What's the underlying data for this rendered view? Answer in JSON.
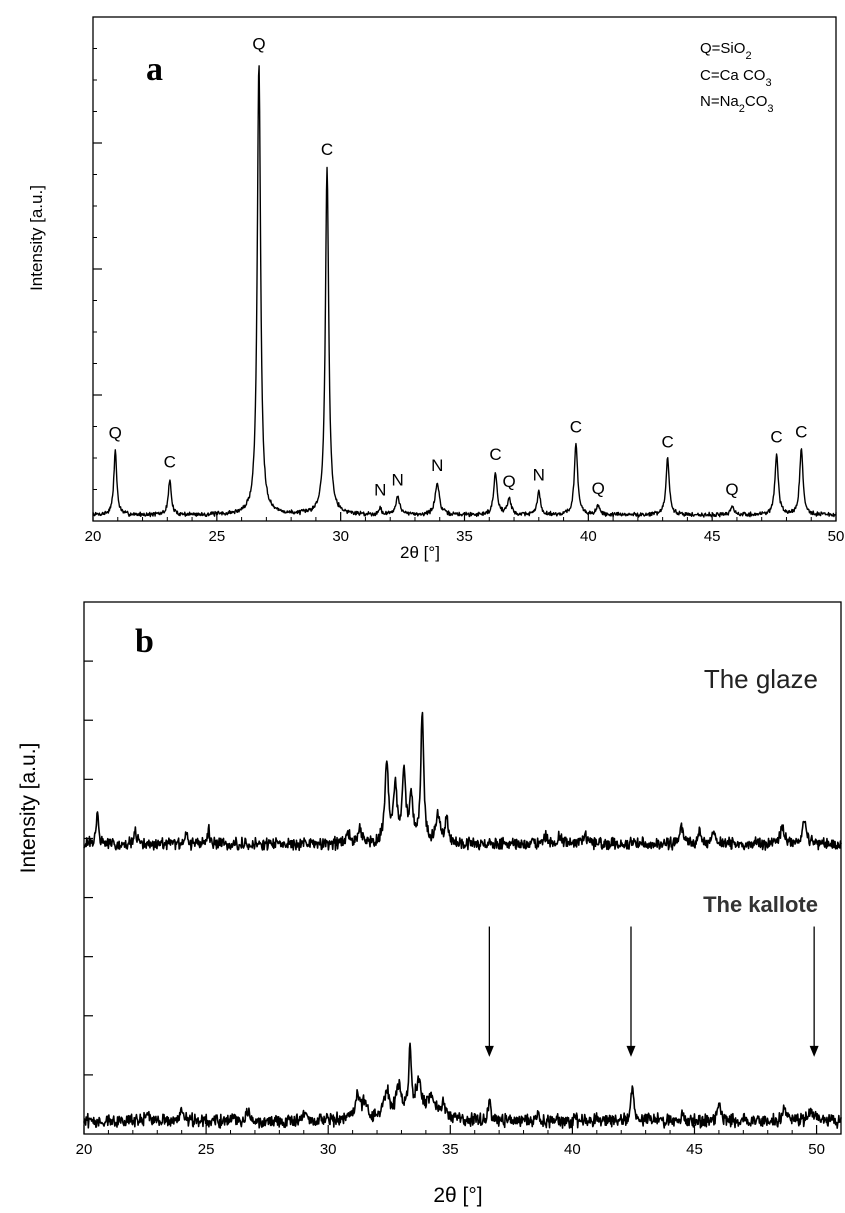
{
  "chart_data": [
    {
      "type": "line",
      "panel_label": "a",
      "xlabel": "2θ [°]",
      "ylabel": "Intensity [a.u.]",
      "xlim": [
        20,
        50
      ],
      "ylim": [
        0,
        100
      ],
      "xticks": [
        20,
        25,
        30,
        35,
        40,
        45,
        50
      ],
      "legend": {
        "position": "top-right",
        "entries": [
          {
            "symbol": "Q",
            "formula": "=SiO",
            "sub": "2"
          },
          {
            "symbol": "C",
            "formula": "=Ca CO",
            "sub": "3"
          },
          {
            "symbol": "N",
            "formula": "=Na",
            "sub": "2",
            "formula2": "CO",
            "sub2": "3"
          }
        ]
      },
      "baseline": 1.2,
      "peaks": [
        {
          "x": 20.9,
          "y": 12.8,
          "w": 0.07,
          "label": "Q"
        },
        {
          "x": 23.1,
          "y": 7.0,
          "w": 0.07,
          "label": "C"
        },
        {
          "x": 26.7,
          "y": 90.0,
          "w": 0.08,
          "label": "Q"
        },
        {
          "x": 29.45,
          "y": 69.0,
          "w": 0.08,
          "label": "C"
        },
        {
          "x": 31.6,
          "y": 1.5,
          "w": 0.05,
          "label": "N"
        },
        {
          "x": 32.3,
          "y": 3.5,
          "w": 0.1,
          "label": "N"
        },
        {
          "x": 33.9,
          "y": 6.3,
          "w": 0.1,
          "label": "N"
        },
        {
          "x": 36.25,
          "y": 8.5,
          "w": 0.08,
          "label": "C"
        },
        {
          "x": 36.8,
          "y": 3.2,
          "w": 0.09,
          "label": "Q"
        },
        {
          "x": 38.0,
          "y": 4.5,
          "w": 0.08,
          "label": "N"
        },
        {
          "x": 39.5,
          "y": 14.0,
          "w": 0.08,
          "label": "C"
        },
        {
          "x": 40.4,
          "y": 1.8,
          "w": 0.08,
          "label": "Q"
        },
        {
          "x": 43.2,
          "y": 11.0,
          "w": 0.08,
          "label": "C"
        },
        {
          "x": 45.8,
          "y": 1.6,
          "w": 0.08,
          "label": "Q"
        },
        {
          "x": 47.6,
          "y": 12.0,
          "w": 0.08,
          "label": "C"
        },
        {
          "x": 48.6,
          "y": 13.0,
          "w": 0.08,
          "label": "C"
        }
      ]
    },
    {
      "type": "line",
      "panel_label": "b",
      "xlabel": "2θ [°]",
      "ylabel": "Intensity [a.u.]",
      "xlim": [
        20,
        51
      ],
      "ylim": [
        0,
        100
      ],
      "xticks": [
        20,
        25,
        30,
        35,
        40,
        45,
        50
      ],
      "series": [
        {
          "name": "The glaze",
          "baseline": 54.5,
          "noise": 0.9,
          "peaks": [
            {
              "x": 20.55,
              "y": 6.5,
              "w": 0.05
            },
            {
              "x": 22.1,
              "y": 2.3,
              "w": 0.06
            },
            {
              "x": 24.2,
              "y": 1.6,
              "w": 0.06
            },
            {
              "x": 25.1,
              "y": 2.8,
              "w": 0.06
            },
            {
              "x": 30.8,
              "y": 2.2,
              "w": 0.1
            },
            {
              "x": 31.3,
              "y": 2.8,
              "w": 0.1
            },
            {
              "x": 32.4,
              "y": 15.0,
              "w": 0.09
            },
            {
              "x": 32.75,
              "y": 10.0,
              "w": 0.08
            },
            {
              "x": 33.1,
              "y": 13.5,
              "w": 0.08
            },
            {
              "x": 33.4,
              "y": 8.0,
              "w": 0.08
            },
            {
              "x": 33.85,
              "y": 24.5,
              "w": 0.07
            },
            {
              "x": 34.5,
              "y": 5.5,
              "w": 0.09
            },
            {
              "x": 34.85,
              "y": 4.5,
              "w": 0.08
            },
            {
              "x": 38.9,
              "y": 1.5,
              "w": 0.1
            },
            {
              "x": 39.5,
              "y": 1.6,
              "w": 0.1
            },
            {
              "x": 40.5,
              "y": 1.3,
              "w": 0.15
            },
            {
              "x": 44.45,
              "y": 3.9,
              "w": 0.07
            },
            {
              "x": 45.2,
              "y": 2.0,
              "w": 0.08
            },
            {
              "x": 45.8,
              "y": 2.5,
              "w": 0.08
            },
            {
              "x": 48.6,
              "y": 3.5,
              "w": 0.08
            },
            {
              "x": 49.5,
              "y": 4.5,
              "w": 0.1
            }
          ]
        },
        {
          "name": "The kallote",
          "baseline": 2.5,
          "noise": 1.0,
          "peaks": [
            {
              "x": 22.6,
              "y": 2.0,
              "w": 0.05
            },
            {
              "x": 24.0,
              "y": 1.5,
              "w": 0.08
            },
            {
              "x": 26.7,
              "y": 1.5,
              "w": 0.1
            },
            {
              "x": 29.0,
              "y": 1.3,
              "w": 0.06
            },
            {
              "x": 31.2,
              "y": 4.5,
              "w": 0.15
            },
            {
              "x": 31.5,
              "y": 3.0,
              "w": 0.1
            },
            {
              "x": 32.4,
              "y": 5.0,
              "w": 0.15
            },
            {
              "x": 32.9,
              "y": 6.5,
              "w": 0.12
            },
            {
              "x": 33.35,
              "y": 12.0,
              "w": 0.07
            },
            {
              "x": 33.7,
              "y": 6.5,
              "w": 0.15
            },
            {
              "x": 34.2,
              "y": 4.5,
              "w": 0.15
            },
            {
              "x": 34.7,
              "y": 3.0,
              "w": 0.15
            },
            {
              "x": 36.6,
              "y": 3.5,
              "w": 0.07
            },
            {
              "x": 38.6,
              "y": 1.3,
              "w": 0.08
            },
            {
              "x": 42.45,
              "y": 5.8,
              "w": 0.07
            },
            {
              "x": 44.5,
              "y": 1.2,
              "w": 0.08
            },
            {
              "x": 46.0,
              "y": 3.3,
              "w": 0.07
            },
            {
              "x": 48.7,
              "y": 2.0,
              "w": 0.1
            },
            {
              "x": 49.8,
              "y": 2.2,
              "w": 0.1
            }
          ]
        }
      ],
      "arrows": [
        {
          "x": 36.6,
          "y_start": 39.0,
          "y_end": 14.5
        },
        {
          "x": 42.4,
          "y_start": 39.0,
          "y_end": 14.5
        },
        {
          "x": 49.9,
          "y_start": 39.0,
          "y_end": 14.5
        }
      ]
    }
  ]
}
